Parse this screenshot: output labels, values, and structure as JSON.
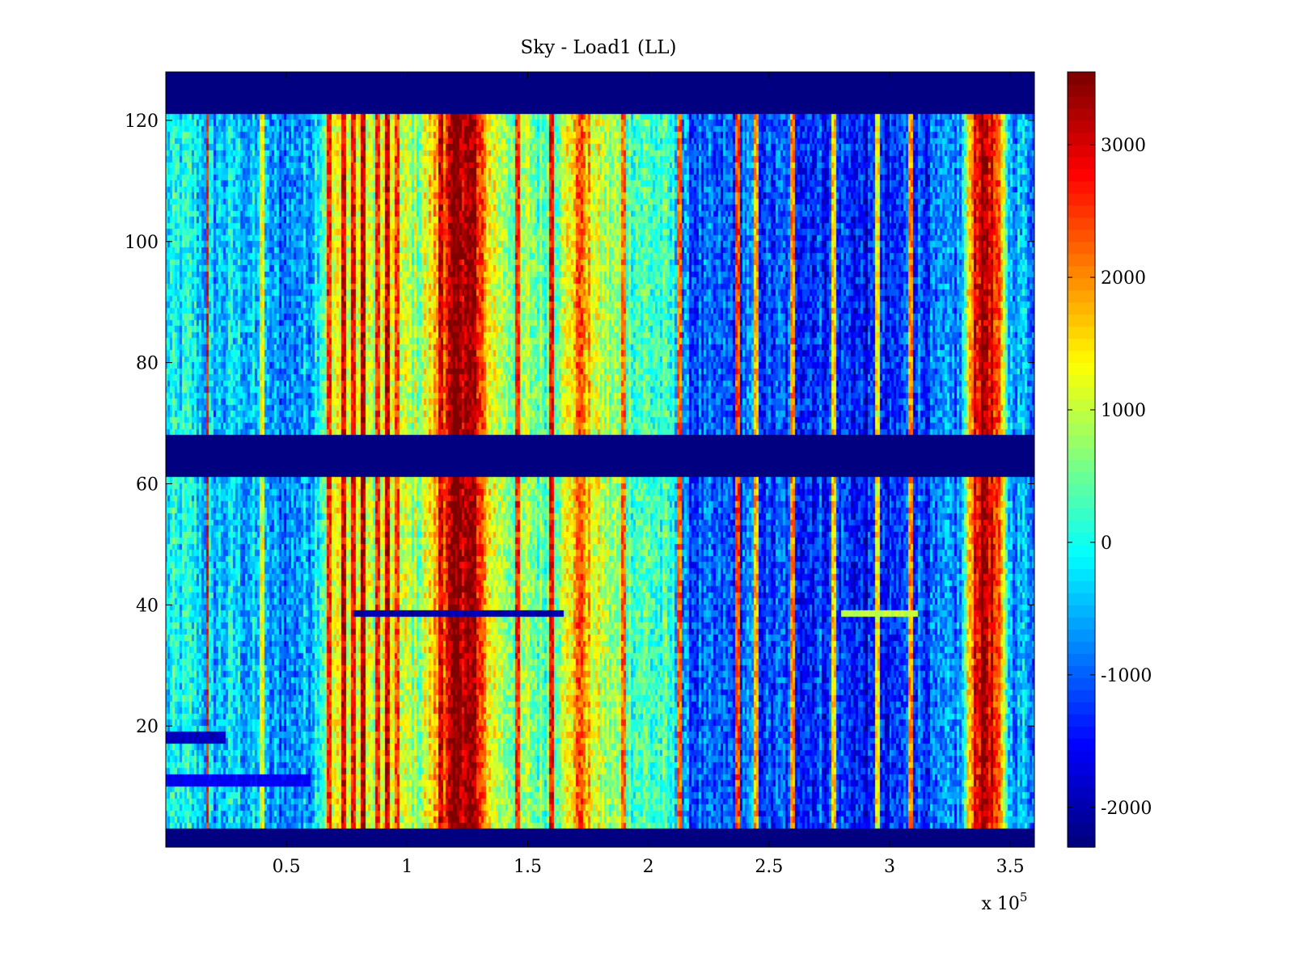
{
  "chart_data": {
    "type": "heatmap",
    "title": "Sky - Load1 (LL)",
    "xlabel": "",
    "ylabel": "",
    "xlim": [
      0,
      360000
    ],
    "ylim": [
      0,
      128
    ],
    "x_scale_label": "x 10",
    "x_scale_exponent": "5",
    "x_ticks": [
      {
        "value": 50000,
        "label": "0.5"
      },
      {
        "value": 100000,
        "label": "1"
      },
      {
        "value": 150000,
        "label": "1.5"
      },
      {
        "value": 200000,
        "label": "2"
      },
      {
        "value": 250000,
        "label": "2.5"
      },
      {
        "value": 300000,
        "label": "3"
      },
      {
        "value": 350000,
        "label": "3.5"
      }
    ],
    "y_ticks": [
      {
        "value": 20,
        "label": "20"
      },
      {
        "value": 40,
        "label": "40"
      },
      {
        "value": 60,
        "label": "60"
      },
      {
        "value": 80,
        "label": "80"
      },
      {
        "value": 100,
        "label": "100"
      },
      {
        "value": 120,
        "label": "120"
      }
    ],
    "colorbar": {
      "colormap": "jet",
      "range": [
        -2300,
        3550
      ],
      "ticks": [
        {
          "value": -2000,
          "label": "-2000"
        },
        {
          "value": -1000,
          "label": "-1000"
        },
        {
          "value": 0,
          "label": "0"
        },
        {
          "value": 1000,
          "label": "1000"
        },
        {
          "value": 2000,
          "label": "2000"
        },
        {
          "value": 3000,
          "label": "3000"
        }
      ]
    },
    "masked_rows": [
      {
        "from": 0,
        "to": 3,
        "value": -2300
      },
      {
        "from": 61.5,
        "to": 67.5,
        "value": -2300
      },
      {
        "from": 121.5,
        "to": 128,
        "value": -2300
      }
    ],
    "column_profile": [
      {
        "x": 0,
        "value": -200
      },
      {
        "x": 10000,
        "value": -100
      },
      {
        "x": 20000,
        "value": -500
      },
      {
        "x": 30000,
        "value": -300
      },
      {
        "x": 40000,
        "value": -700
      },
      {
        "x": 50000,
        "value": -800
      },
      {
        "x": 60000,
        "value": -500
      },
      {
        "x": 65000,
        "value": 400
      },
      {
        "x": 70000,
        "value": 1200
      },
      {
        "x": 75000,
        "value": 900
      },
      {
        "x": 80000,
        "value": 1300
      },
      {
        "x": 85000,
        "value": 900
      },
      {
        "x": 90000,
        "value": 1100
      },
      {
        "x": 95000,
        "value": 800
      },
      {
        "x": 100000,
        "value": 900
      },
      {
        "x": 105000,
        "value": 700
      },
      {
        "x": 110000,
        "value": 1400
      },
      {
        "x": 115000,
        "value": 2200
      },
      {
        "x": 120000,
        "value": 3400
      },
      {
        "x": 125000,
        "value": 3500
      },
      {
        "x": 130000,
        "value": 2500
      },
      {
        "x": 135000,
        "value": 1300
      },
      {
        "x": 140000,
        "value": 900
      },
      {
        "x": 145000,
        "value": 700
      },
      {
        "x": 150000,
        "value": 700
      },
      {
        "x": 155000,
        "value": 500
      },
      {
        "x": 160000,
        "value": 600
      },
      {
        "x": 165000,
        "value": 900
      },
      {
        "x": 170000,
        "value": 1900
      },
      {
        "x": 175000,
        "value": 1600
      },
      {
        "x": 180000,
        "value": 900
      },
      {
        "x": 185000,
        "value": 700
      },
      {
        "x": 190000,
        "value": 600
      },
      {
        "x": 195000,
        "value": 400
      },
      {
        "x": 200000,
        "value": 300
      },
      {
        "x": 205000,
        "value": 200
      },
      {
        "x": 210000,
        "value": 0
      },
      {
        "x": 215000,
        "value": -900
      },
      {
        "x": 220000,
        "value": -1100
      },
      {
        "x": 230000,
        "value": -1200
      },
      {
        "x": 240000,
        "value": -900
      },
      {
        "x": 250000,
        "value": -1200
      },
      {
        "x": 260000,
        "value": -1100
      },
      {
        "x": 270000,
        "value": -1200
      },
      {
        "x": 280000,
        "value": -1200
      },
      {
        "x": 290000,
        "value": -1500
      },
      {
        "x": 300000,
        "value": -1500
      },
      {
        "x": 310000,
        "value": -1000
      },
      {
        "x": 320000,
        "value": -1100
      },
      {
        "x": 330000,
        "value": -700
      },
      {
        "x": 335000,
        "value": 2800
      },
      {
        "x": 340000,
        "value": 3400
      },
      {
        "x": 345000,
        "value": 2200
      },
      {
        "x": 350000,
        "value": -500
      },
      {
        "x": 360000,
        "value": -600
      }
    ],
    "vertical_streaks": [
      {
        "x": 17500,
        "value": 2600
      },
      {
        "x": 40000,
        "value": 1200
      },
      {
        "x": 68000,
        "value": 2600
      },
      {
        "x": 74000,
        "value": 3000
      },
      {
        "x": 78000,
        "value": 2800
      },
      {
        "x": 82000,
        "value": 3200
      },
      {
        "x": 88000,
        "value": 2600
      },
      {
        "x": 92000,
        "value": 3000
      },
      {
        "x": 96000,
        "value": 2400
      },
      {
        "x": 114000,
        "value": 3000
      },
      {
        "x": 128000,
        "value": 3400
      },
      {
        "x": 146000,
        "value": 2600
      },
      {
        "x": 160000,
        "value": 2800
      },
      {
        "x": 172000,
        "value": 2400
      },
      {
        "x": 190000,
        "value": 2200
      },
      {
        "x": 213000,
        "value": 2200
      },
      {
        "x": 237000,
        "value": 2400
      },
      {
        "x": 245000,
        "value": 1800
      },
      {
        "x": 260000,
        "value": 2000
      },
      {
        "x": 277000,
        "value": 1600
      },
      {
        "x": 295000,
        "value": 1400
      },
      {
        "x": 309000,
        "value": 2000
      }
    ],
    "row_features": [
      {
        "y": 38.5,
        "x_from": 78000,
        "x_to": 165000,
        "value": -2000
      },
      {
        "y": 38.5,
        "x_from": 280000,
        "x_to": 312000,
        "value": 1000
      },
      {
        "y": 18,
        "x_from": 0,
        "x_to": 25000,
        "value": -1900
      },
      {
        "y": 11,
        "x_from": 0,
        "x_to": 60000,
        "value": -1600
      }
    ]
  }
}
